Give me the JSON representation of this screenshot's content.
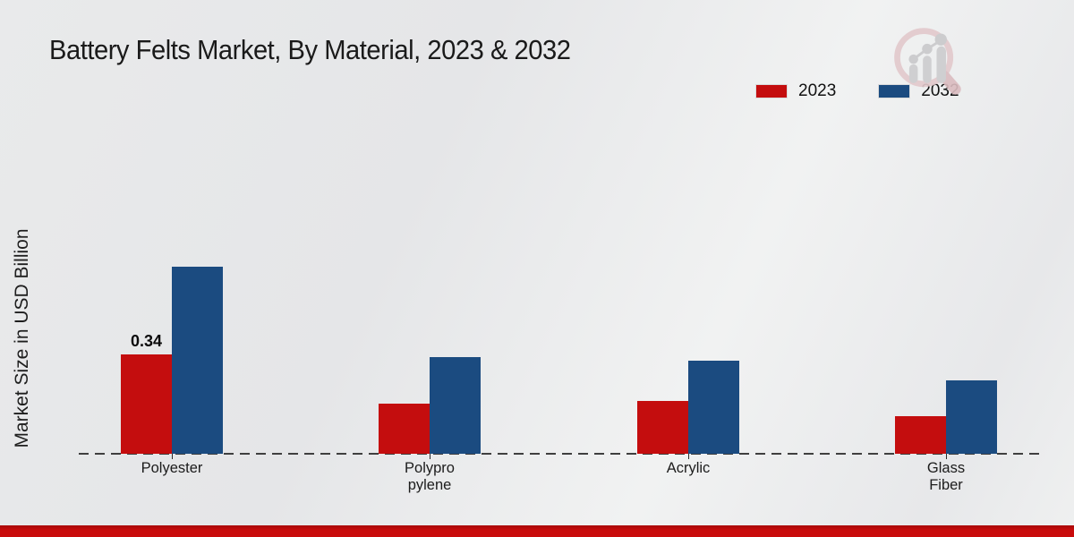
{
  "title": "Battery Felts Market, By Material, 2023 & 2032",
  "y_axis_label": "Market Size in USD Billion",
  "legend": [
    {
      "label": "2023",
      "color": "#c40d0e"
    },
    {
      "label": "2032",
      "color": "#1b4b80"
    }
  ],
  "logo": {
    "name": "magnifier-growth-chart-logo",
    "ring_color": "#e2c9cc",
    "bars_color": "#ccccce"
  },
  "footer": {
    "bar_color": "#c90b0b"
  },
  "chart_data": {
    "type": "bar",
    "title": "Battery Felts Market, By Material, 2023 & 2032",
    "xlabel": "",
    "ylabel": "Market Size in USD Billion",
    "categories": [
      "Polyester",
      "Polypropylene",
      "Acrylic",
      "Glass Fiber"
    ],
    "category_label_lines": [
      [
        "Polyester"
      ],
      [
        "Polypro",
        "pylene"
      ],
      [
        "Acrylic"
      ],
      [
        "Glass",
        "Fiber"
      ]
    ],
    "series": [
      {
        "name": "2023",
        "color": "#c40d0e",
        "values": [
          0.34,
          0.17,
          0.18,
          0.13
        ]
      },
      {
        "name": "2032",
        "color": "#1b4b80",
        "values": [
          0.64,
          0.33,
          0.32,
          0.25
        ]
      }
    ],
    "data_labels": [
      {
        "series_index": 0,
        "category_index": 0,
        "text": "0.34"
      }
    ],
    "ylim": [
      0,
      0.7
    ],
    "grid": false,
    "legend_position": "top-right",
    "baseline_style": "dashed"
  }
}
